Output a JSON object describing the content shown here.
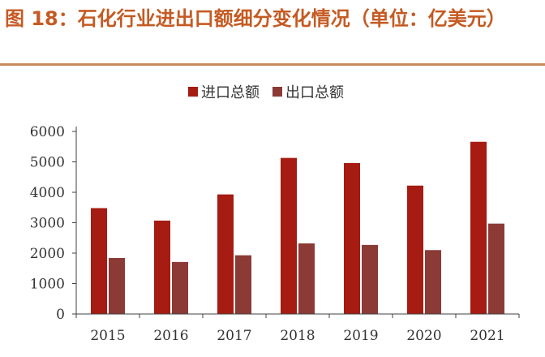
{
  "figure": {
    "title": "图 18：石化行业进出口额细分变化情况（单位：亿美元）"
  },
  "colors": {
    "title": "#c55a22",
    "rule": "#c88a5a",
    "import": "#a61b12",
    "export": "#8b3a36",
    "axis": "#404040"
  },
  "chart_data": {
    "type": "bar",
    "categories": [
      "2015",
      "2016",
      "2017",
      "2018",
      "2019",
      "2020",
      "2021"
    ],
    "series": [
      {
        "name": "进口总额",
        "values": [
          3480,
          3070,
          3930,
          5130,
          4960,
          4220,
          5660
        ]
      },
      {
        "name": "出口总额",
        "values": [
          1840,
          1710,
          1930,
          2320,
          2270,
          2100,
          2970
        ]
      }
    ],
    "ylim": [
      0,
      6000
    ],
    "yticks": [
      0,
      1000,
      2000,
      3000,
      4000,
      5000,
      6000
    ],
    "legend_position": "top-center",
    "grid": false
  }
}
